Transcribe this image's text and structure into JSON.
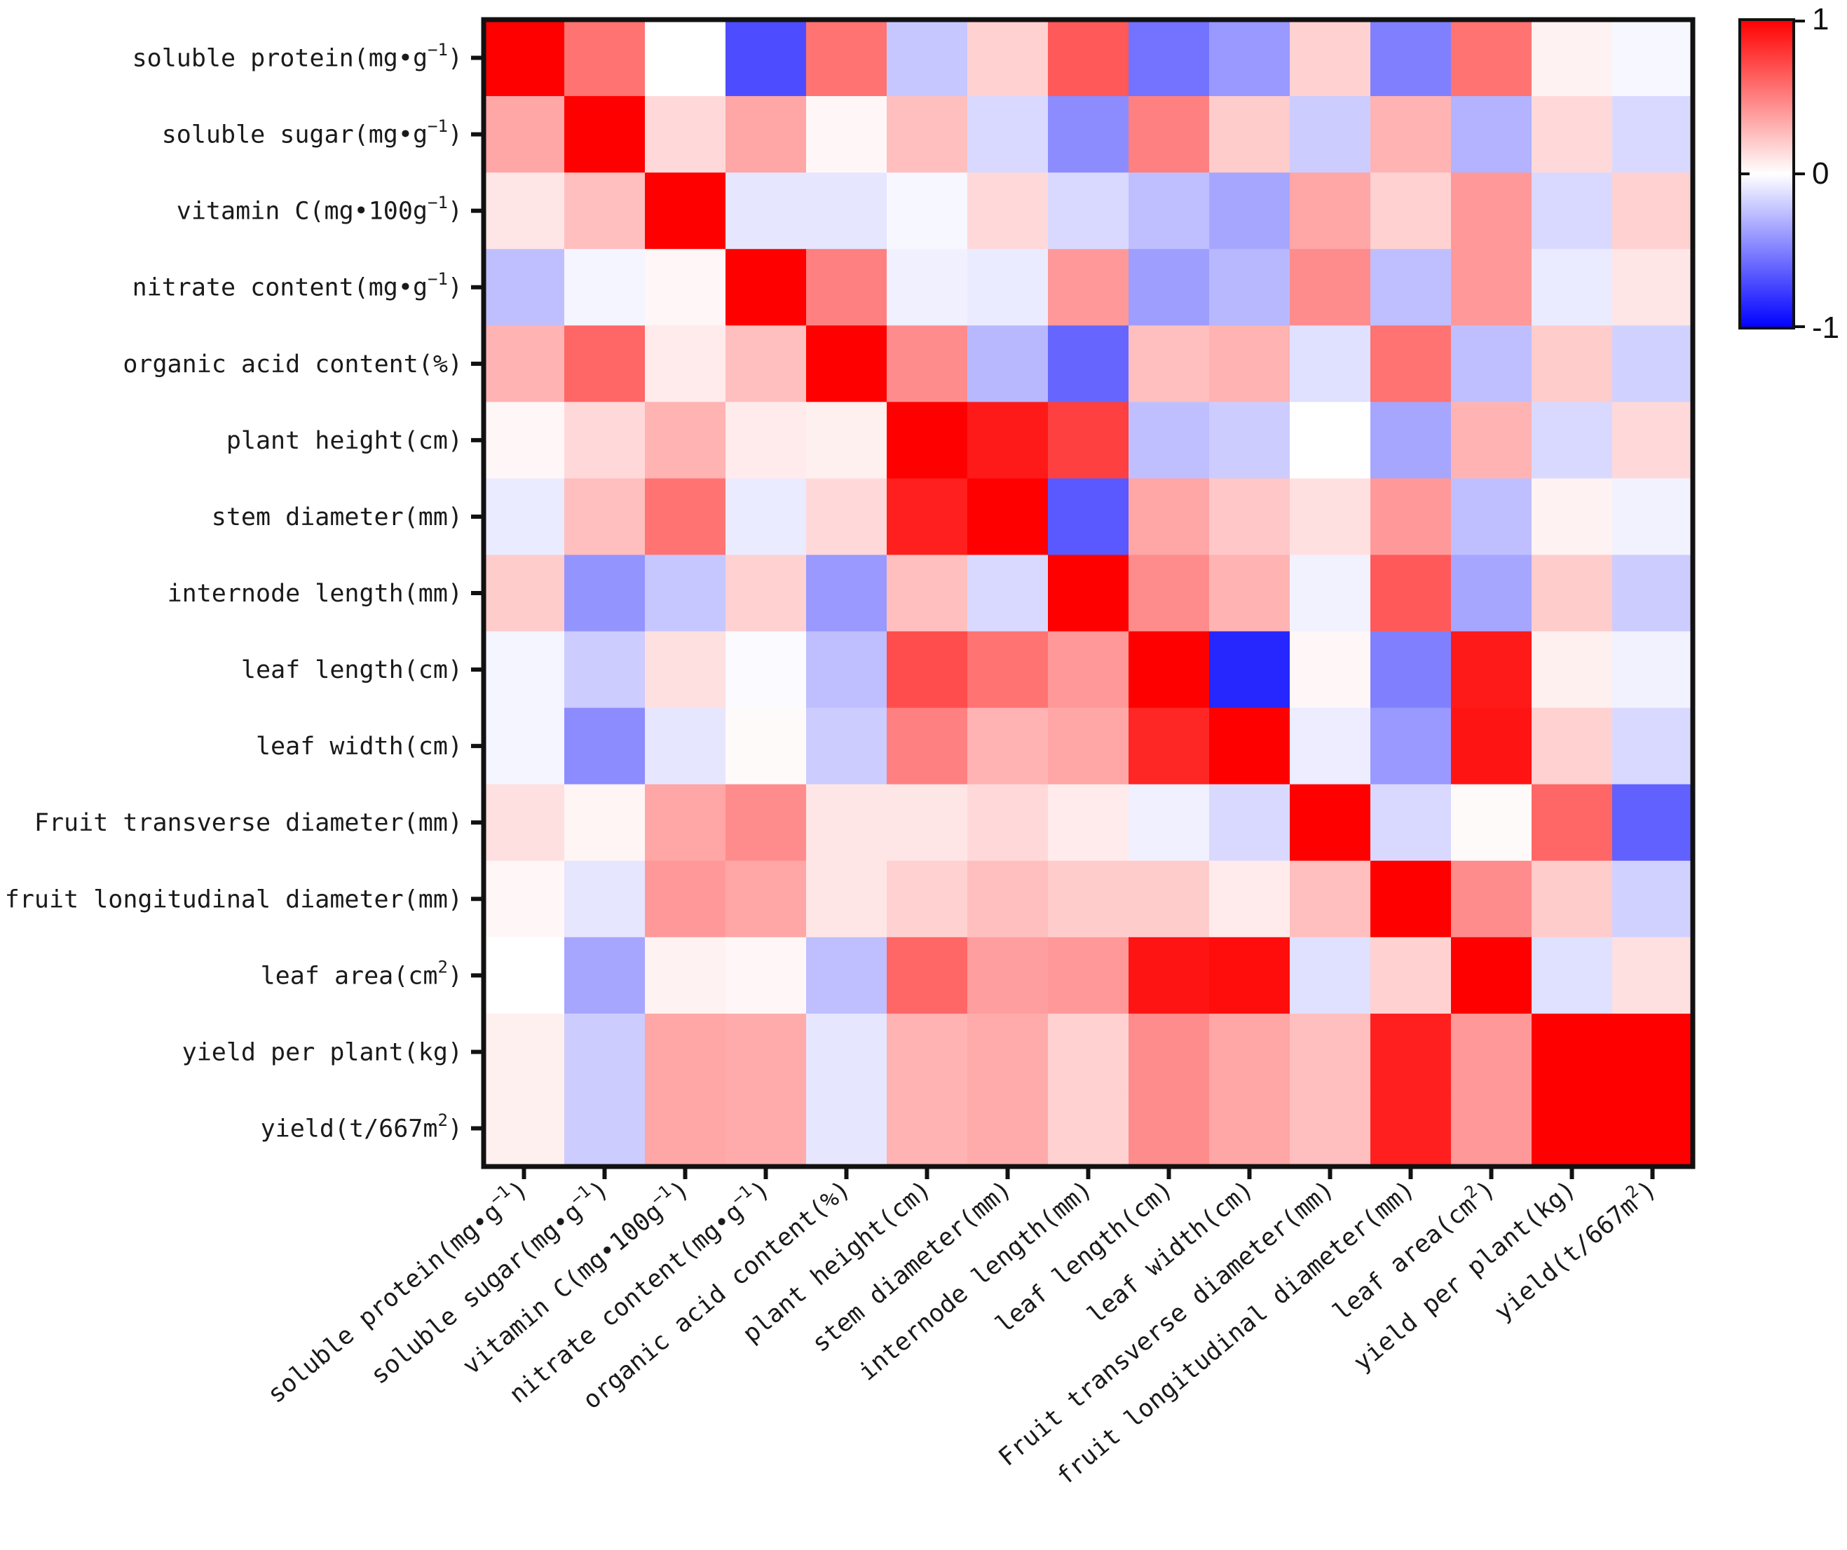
{
  "chart_data": {
    "type": "heatmap",
    "title": "",
    "xlabel": "",
    "ylabel": "",
    "labels": [
      [
        "soluble protein(mg•g",
        "−1",
        ")"
      ],
      [
        "soluble sugar(mg•g",
        "−1",
        ")"
      ],
      [
        "vitamin C(mg•100g",
        "−1",
        ")"
      ],
      [
        "nitrate content(mg•g",
        "−1",
        ")"
      ],
      [
        "organic acid content(%)"
      ],
      [
        "plant height(cm)"
      ],
      [
        "stem diameter(mm)"
      ],
      [
        "internode length(mm)"
      ],
      [
        "leaf length(cm)"
      ],
      [
        "leaf width(cm)"
      ],
      [
        "Fruit transverse diameter(mm)"
      ],
      [
        "fruit longitudinal diameter(mm)"
      ],
      [
        "leaf area(cm",
        "2",
        ")"
      ],
      [
        "yield per plant(kg)"
      ],
      [
        "yield(t/667m",
        "2",
        ")"
      ]
    ],
    "values": [
      [
        1.0,
        0.55,
        0.0,
        -0.7,
        0.55,
        -0.22,
        0.18,
        0.65,
        -0.55,
        -0.4,
        0.18,
        -0.5,
        0.55,
        0.05,
        -0.03
      ],
      [
        0.35,
        1.0,
        0.15,
        0.35,
        0.03,
        0.25,
        -0.15,
        -0.45,
        0.5,
        0.2,
        -0.2,
        0.3,
        -0.3,
        0.15,
        -0.15
      ],
      [
        0.1,
        0.25,
        1.0,
        -0.1,
        -0.1,
        -0.03,
        0.15,
        -0.15,
        -0.25,
        -0.35,
        0.35,
        0.18,
        0.4,
        -0.15,
        0.18
      ],
      [
        -0.25,
        -0.04,
        0.03,
        1.0,
        0.5,
        -0.06,
        -0.08,
        0.4,
        -0.38,
        -0.28,
        0.45,
        -0.25,
        0.4,
        -0.08,
        0.1
      ],
      [
        0.3,
        0.6,
        0.08,
        0.25,
        1.0,
        0.45,
        -0.28,
        -0.6,
        0.25,
        0.3,
        -0.12,
        0.55,
        -0.25,
        0.2,
        -0.18
      ],
      [
        0.03,
        0.15,
        0.3,
        0.08,
        0.06,
        1.0,
        0.9,
        0.75,
        -0.25,
        -0.2,
        0.0,
        -0.35,
        0.3,
        -0.15,
        0.15
      ],
      [
        -0.08,
        0.25,
        0.55,
        -0.08,
        0.15,
        0.88,
        1.0,
        -0.65,
        0.35,
        0.22,
        0.12,
        0.4,
        -0.25,
        0.05,
        -0.05
      ],
      [
        0.2,
        -0.42,
        -0.22,
        0.18,
        -0.4,
        0.25,
        -0.15,
        1.0,
        0.45,
        0.3,
        -0.05,
        0.65,
        -0.35,
        0.2,
        -0.2
      ],
      [
        -0.04,
        -0.2,
        0.12,
        -0.02,
        -0.25,
        0.7,
        0.55,
        0.4,
        1.0,
        -0.85,
        0.03,
        -0.5,
        0.9,
        0.06,
        -0.05
      ],
      [
        -0.04,
        -0.45,
        -0.1,
        0.02,
        -0.2,
        0.5,
        0.3,
        0.35,
        0.85,
        1.0,
        -0.07,
        -0.4,
        0.92,
        0.18,
        -0.15
      ],
      [
        0.12,
        0.04,
        0.35,
        0.45,
        0.1,
        0.1,
        0.15,
        0.08,
        -0.06,
        -0.15,
        1.0,
        -0.15,
        0.02,
        0.6,
        -0.62
      ],
      [
        0.03,
        -0.1,
        0.4,
        0.35,
        0.1,
        0.18,
        0.25,
        0.2,
        0.2,
        0.08,
        0.25,
        1.0,
        0.45,
        0.2,
        -0.18
      ],
      [
        0.0,
        -0.35,
        0.05,
        0.03,
        -0.25,
        0.6,
        0.38,
        0.4,
        0.92,
        0.95,
        -0.12,
        0.18,
        1.0,
        -0.12,
        0.12
      ],
      [
        0.06,
        -0.2,
        0.35,
        0.33,
        -0.1,
        0.3,
        0.33,
        0.18,
        0.45,
        0.35,
        0.25,
        0.88,
        0.4,
        1.0,
        1.0
      ],
      [
        0.06,
        -0.2,
        0.35,
        0.33,
        -0.1,
        0.3,
        0.33,
        0.18,
        0.45,
        0.35,
        0.25,
        0.88,
        0.4,
        1.0,
        1.0
      ]
    ],
    "color_scale": {
      "min": -1,
      "max": 1,
      "low_color": "#0000ff",
      "mid_color": "#ffffff",
      "high_color": "#ff0000",
      "tick_labels": [
        "1",
        "0",
        "-1"
      ]
    }
  }
}
